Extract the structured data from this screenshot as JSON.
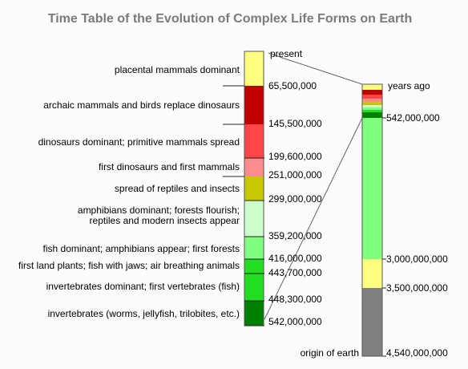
{
  "title": "Time Table of the Evolution of Complex Life Forms on Earth",
  "left_column": {
    "top_label": "present",
    "segments": [
      {
        "label_lines": [
          "placental mammals dominant"
        ],
        "color": "#ffff80"
      },
      {
        "label_lines": [
          "archaic mammals and birds replace dinosaurs"
        ],
        "color": "#c00000"
      },
      {
        "label_lines": [
          "dinosaurs dominant; primitive mammals spread"
        ],
        "color": "#ff4646"
      },
      {
        "label_lines": [
          "first dinosaurs and first mammals"
        ],
        "color": "#ff8c8c"
      },
      {
        "label_lines": [
          "spread of reptiles and insects"
        ],
        "color": "#c8c800"
      },
      {
        "label_lines": [
          "amphibians dominant; forests flourish;",
          "reptiles and modern insects appear"
        ],
        "color": "#ccffcc"
      },
      {
        "label_lines": [
          "fish dominant; amphibians appear; first forests"
        ],
        "color": "#80ff80"
      },
      {
        "label_lines": [
          "first land plants; fish with jaws; air breathing animals"
        ],
        "color": "#22dd22"
      },
      {
        "label_lines": [
          "invertebrates dominant; first vertebrates (fish)"
        ],
        "color": "#22dd22"
      },
      {
        "label_lines": [
          "invertebrates (worms, jellyfish, trilobites, etc.)"
        ],
        "color": "#008000"
      }
    ],
    "boundaries": [
      "65,500,000",
      "145,500,000",
      "199,600,000",
      "251,000,000",
      "299,000,000",
      "359,200,000",
      "416,000,000",
      "443,700,000",
      "448,300,000",
      "542,000,000"
    ]
  },
  "right_column": {
    "top_label": "years ago",
    "bottom_label": "origin of earth",
    "top_segments": [
      "#ffff80",
      "#c00000",
      "#ff4646",
      "#ff8c8c",
      "#c8c800",
      "#ccffcc",
      "#80ff80",
      "#22dd22",
      "#008000"
    ],
    "segments": [
      {
        "color": "#80ff80"
      },
      {
        "color": "#ffff80"
      },
      {
        "color": "#808080"
      }
    ],
    "boundaries": [
      "542,000,000",
      "3,000,000,000",
      "3,500,000,000",
      "4,540,000,000"
    ]
  }
}
